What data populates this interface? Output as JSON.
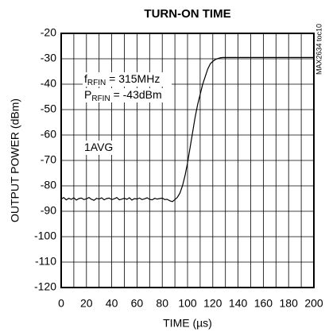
{
  "chart_data": {
    "type": "line",
    "title": "TURN-ON TIME",
    "xlabel": "TIME (µs)",
    "ylabel": "OUTPUT POWER (dBm)",
    "side_label": "MAX2634 toc10",
    "annotations": [
      {
        "main": "f",
        "sub": "RFIN",
        "rest": " = 315MHz"
      },
      {
        "main": "P",
        "sub": "RFIN",
        "rest": " = -43dBm"
      },
      {
        "main": "1AVG"
      }
    ],
    "x": [
      0,
      2,
      4,
      6,
      8,
      10,
      12,
      14,
      16,
      18,
      20,
      22,
      24,
      26,
      28,
      30,
      32,
      34,
      36,
      38,
      40,
      42,
      44,
      46,
      48,
      50,
      52,
      54,
      56,
      58,
      60,
      62,
      64,
      66,
      68,
      70,
      72,
      74,
      76,
      78,
      80,
      82,
      84,
      86,
      88,
      90,
      92,
      94,
      96,
      98,
      100,
      102,
      104,
      106,
      108,
      110,
      112,
      114,
      116,
      118,
      120,
      122,
      124,
      126,
      128,
      140,
      150,
      160,
      170,
      180,
      190,
      200
    ],
    "series": [
      {
        "name": "output",
        "color": "#000000",
        "values": [
          -85.2,
          -84.6,
          -85.5,
          -84.9,
          -85.3,
          -84.7,
          -85.6,
          -85.0,
          -84.8,
          -85.4,
          -85.1,
          -84.6,
          -85.3,
          -85.7,
          -84.9,
          -85.2,
          -84.7,
          -85.5,
          -85.0,
          -84.8,
          -85.4,
          -85.1,
          -84.6,
          -85.5,
          -85.2,
          -84.9,
          -85.3,
          -84.7,
          -85.6,
          -85.0,
          -85.2,
          -84.8,
          -85.4,
          -85.1,
          -84.7,
          -85.3,
          -85.5,
          -84.9,
          -85.2,
          -85.0,
          -84.8,
          -85.4,
          -85.3,
          -85.9,
          -86.2,
          -85.4,
          -84.5,
          -82.8,
          -80.0,
          -76.0,
          -71.0,
          -65.0,
          -59.0,
          -53.0,
          -48.0,
          -44.0,
          -40.0,
          -37.0,
          -34.0,
          -32.0,
          -31.0,
          -30.3,
          -29.9,
          -29.6,
          -29.5,
          -29.5,
          -29.5,
          -29.5,
          -29.5,
          -29.5,
          -29.5,
          -29.5
        ]
      }
    ],
    "xlim": [
      0,
      200
    ],
    "xticks": [
      0,
      20,
      40,
      60,
      80,
      100,
      120,
      140,
      160,
      180,
      200
    ],
    "xminorticks": [
      10,
      30,
      50,
      70,
      90,
      110,
      130,
      150,
      170,
      190
    ],
    "ylim": [
      -120,
      -20
    ],
    "yticks": [
      -20,
      -30,
      -40,
      -50,
      -60,
      -70,
      -80,
      -90,
      -100,
      -110,
      -120
    ],
    "grid": true
  }
}
